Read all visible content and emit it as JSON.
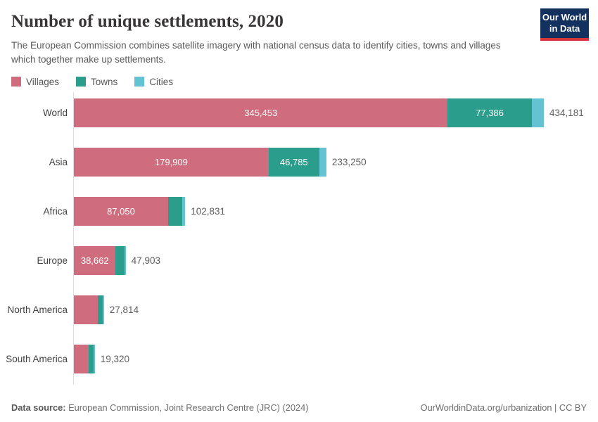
{
  "header": {
    "title": "Number of unique settlements, 2020",
    "subtitle": "The European Commission combines satellite imagery with national census data to identify cities, towns and villages which together make up settlements.",
    "logo": {
      "line1": "Our World",
      "line2": "in Data",
      "bg_color": "#12315f",
      "accent_color": "#d8323c"
    }
  },
  "legend": {
    "items": [
      {
        "label": "Villages",
        "color": "#cf6d7e"
      },
      {
        "label": "Towns",
        "color": "#2a9d8c"
      },
      {
        "label": "Cities",
        "color": "#63c3d2"
      }
    ]
  },
  "chart_data": {
    "type": "bar",
    "orientation": "horizontal",
    "stacked": true,
    "title": "Number of unique settlements, 2020",
    "categories": [
      "World",
      "Asia",
      "Africa",
      "Europe",
      "North America",
      "South America"
    ],
    "series": [
      {
        "name": "Villages",
        "color": "#cf6d7e",
        "values": [
          345453,
          179909,
          87050,
          38662,
          22000,
          13600
        ]
      },
      {
        "name": "Towns",
        "color": "#2a9d8c",
        "values": [
          77386,
          46785,
          13000,
          8000,
          4514,
          4400
        ]
      },
      {
        "name": "Cities",
        "color": "#63c3d2",
        "values": [
          11342,
          6556,
          2781,
          1241,
          1300,
          1320
        ]
      }
    ],
    "totals": [
      434181,
      233250,
      102831,
      47903,
      27814,
      19320
    ],
    "total_labels": [
      "434,181",
      "233,250",
      "102,831",
      "47,903",
      "27,814",
      "19,320"
    ],
    "segment_labels": {
      "Villages": [
        "345,453",
        "179,909",
        "87,050",
        "38,662",
        "",
        ""
      ],
      "Towns": [
        "77,386",
        "46,785",
        "",
        "",
        "",
        ""
      ],
      "Cities": [
        "",
        "",
        "",
        "",
        "",
        ""
      ]
    },
    "xlim": [
      0,
      434181
    ],
    "grid": false,
    "legend_position": "top"
  },
  "footer": {
    "datasource_label": "Data source:",
    "datasource_text": " European Commission, Joint Research Centre (JRC) (2024)",
    "link_text": "OurWorldinData.org/urbanization",
    "license_text": " | CC BY"
  }
}
